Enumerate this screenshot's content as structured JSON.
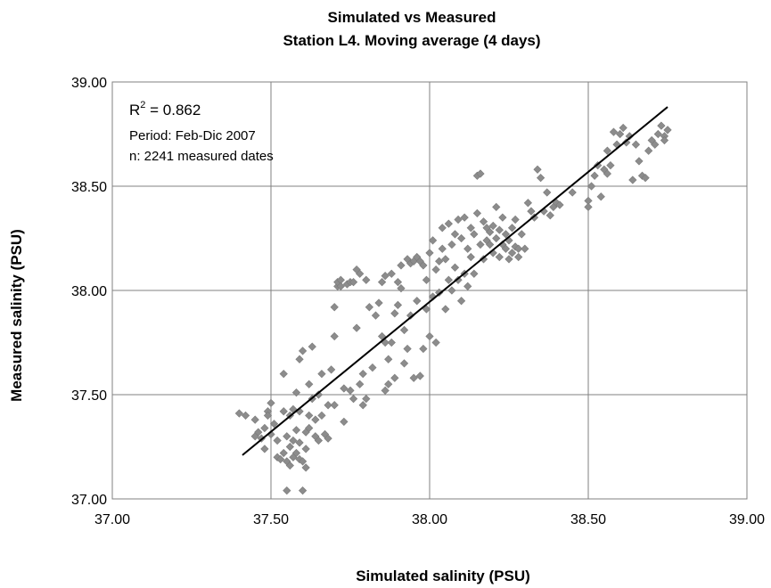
{
  "chart_data": {
    "type": "scatter",
    "title": "Simulated vs Measured",
    "subtitle": "Station L4. Moving average  (4 days)",
    "xlabel": "Simulated salinity (PSU)",
    "ylabel": "Measured salinity (PSU)",
    "xlim": [
      37.0,
      39.0
    ],
    "ylim": [
      37.0,
      39.0
    ],
    "x_ticks": [
      "37.00",
      "37.50",
      "38.00",
      "38.50",
      "39.00"
    ],
    "y_ticks": [
      "37.00",
      "37.50",
      "38.00",
      "38.50",
      "39.00"
    ],
    "grid": true,
    "annotations": {
      "r2_label": "R",
      "r2_sup": "2",
      "r2_value": " = 0.862",
      "period": "Period: Feb-Dic 2007",
      "n": "n: 2241 measured dates"
    },
    "colors": {
      "points": "#8c8c8c",
      "trendline": "#000000",
      "grid": "#808080"
    },
    "trendline": {
      "x": [
        37.41,
        38.75
      ],
      "y": [
        37.21,
        38.88
      ]
    },
    "points": [
      [
        37.4,
        37.41
      ],
      [
        37.42,
        37.4
      ],
      [
        37.45,
        37.38
      ],
      [
        37.45,
        37.3
      ],
      [
        37.46,
        37.32
      ],
      [
        37.47,
        37.29
      ],
      [
        37.48,
        37.34
      ],
      [
        37.48,
        37.24
      ],
      [
        37.49,
        37.42
      ],
      [
        37.49,
        37.4
      ],
      [
        37.5,
        37.46
      ],
      [
        37.5,
        37.31
      ],
      [
        37.51,
        37.36
      ],
      [
        37.52,
        37.28
      ],
      [
        37.52,
        37.2
      ],
      [
        37.53,
        37.19
      ],
      [
        37.54,
        37.22
      ],
      [
        37.54,
        37.42
      ],
      [
        37.54,
        37.6
      ],
      [
        37.55,
        37.04
      ],
      [
        37.55,
        37.18
      ],
      [
        37.55,
        37.3
      ],
      [
        37.56,
        37.16
      ],
      [
        37.56,
        37.25
      ],
      [
        37.56,
        37.4
      ],
      [
        37.57,
        37.28
      ],
      [
        37.57,
        37.43
      ],
      [
        37.57,
        37.2
      ],
      [
        37.58,
        37.33
      ],
      [
        37.58,
        37.22
      ],
      [
        37.58,
        37.51
      ],
      [
        37.59,
        37.19
      ],
      [
        37.59,
        37.27
      ],
      [
        37.59,
        37.42
      ],
      [
        37.59,
        37.67
      ],
      [
        37.6,
        37.04
      ],
      [
        37.6,
        37.18
      ],
      [
        37.6,
        37.71
      ],
      [
        37.61,
        37.32
      ],
      [
        37.61,
        37.15
      ],
      [
        37.61,
        37.24
      ],
      [
        37.62,
        37.34
      ],
      [
        37.62,
        37.4
      ],
      [
        37.62,
        37.55
      ],
      [
        37.63,
        37.48
      ],
      [
        37.63,
        37.73
      ],
      [
        37.64,
        37.3
      ],
      [
        37.64,
        37.38
      ],
      [
        37.65,
        37.28
      ],
      [
        37.65,
        37.5
      ],
      [
        37.66,
        37.4
      ],
      [
        37.66,
        37.6
      ],
      [
        37.67,
        37.31
      ],
      [
        37.68,
        37.45
      ],
      [
        37.68,
        37.29
      ],
      [
        37.69,
        37.62
      ],
      [
        37.7,
        37.45
      ],
      [
        37.7,
        37.78
      ],
      [
        37.7,
        37.92
      ],
      [
        37.71,
        38.02
      ],
      [
        37.71,
        38.04
      ],
      [
        37.72,
        38.05
      ],
      [
        37.72,
        38.02
      ],
      [
        37.73,
        37.53
      ],
      [
        37.73,
        37.37
      ],
      [
        37.74,
        38.03
      ],
      [
        37.75,
        38.04
      ],
      [
        37.75,
        37.52
      ],
      [
        37.76,
        38.04
      ],
      [
        37.76,
        37.48
      ],
      [
        37.77,
        37.82
      ],
      [
        37.77,
        38.1
      ],
      [
        37.78,
        38.08
      ],
      [
        37.78,
        37.55
      ],
      [
        37.79,
        37.45
      ],
      [
        37.79,
        37.6
      ],
      [
        37.8,
        38.05
      ],
      [
        37.8,
        37.48
      ],
      [
        37.81,
        37.92
      ],
      [
        37.82,
        37.63
      ],
      [
        37.83,
        37.88
      ],
      [
        37.84,
        37.94
      ],
      [
        37.85,
        38.04
      ],
      [
        37.85,
        37.78
      ],
      [
        37.86,
        38.07
      ],
      [
        37.86,
        37.75
      ],
      [
        37.86,
        37.52
      ],
      [
        37.87,
        37.67
      ],
      [
        37.87,
        37.55
      ],
      [
        37.88,
        38.08
      ],
      [
        37.88,
        37.75
      ],
      [
        37.89,
        37.58
      ],
      [
        37.89,
        37.89
      ],
      [
        37.9,
        37.93
      ],
      [
        37.9,
        38.04
      ],
      [
        37.91,
        38.12
      ],
      [
        37.91,
        38.01
      ],
      [
        37.92,
        37.81
      ],
      [
        37.92,
        37.65
      ],
      [
        37.93,
        38.15
      ],
      [
        37.93,
        37.72
      ],
      [
        37.94,
        38.13
      ],
      [
        37.94,
        37.88
      ],
      [
        37.95,
        38.14
      ],
      [
        37.95,
        37.58
      ],
      [
        37.96,
        38.16
      ],
      [
        37.96,
        37.95
      ],
      [
        37.97,
        38.14
      ],
      [
        37.97,
        37.59
      ],
      [
        37.98,
        38.12
      ],
      [
        37.98,
        37.72
      ],
      [
        37.99,
        38.05
      ],
      [
        37.99,
        37.91
      ],
      [
        38.0,
        38.18
      ],
      [
        38.0,
        37.78
      ],
      [
        38.01,
        38.24
      ],
      [
        38.01,
        37.97
      ],
      [
        38.02,
        38.1
      ],
      [
        38.02,
        37.75
      ],
      [
        38.03,
        38.14
      ],
      [
        38.03,
        37.99
      ],
      [
        38.04,
        38.3
      ],
      [
        38.04,
        38.2
      ],
      [
        38.05,
        38.15
      ],
      [
        38.05,
        37.91
      ],
      [
        38.06,
        38.32
      ],
      [
        38.06,
        38.05
      ],
      [
        38.07,
        38.22
      ],
      [
        38.07,
        38.0
      ],
      [
        38.08,
        38.27
      ],
      [
        38.08,
        38.11
      ],
      [
        38.09,
        38.34
      ],
      [
        38.09,
        38.05
      ],
      [
        38.1,
        38.25
      ],
      [
        38.1,
        37.95
      ],
      [
        38.11,
        38.35
      ],
      [
        38.11,
        38.08
      ],
      [
        38.12,
        38.2
      ],
      [
        38.12,
        38.02
      ],
      [
        38.13,
        38.3
      ],
      [
        38.13,
        38.16
      ],
      [
        38.14,
        38.27
      ],
      [
        38.14,
        38.08
      ],
      [
        38.15,
        38.55
      ],
      [
        38.15,
        38.37
      ],
      [
        38.16,
        38.56
      ],
      [
        38.16,
        38.22
      ],
      [
        38.17,
        38.33
      ],
      [
        38.17,
        38.15
      ],
      [
        38.18,
        38.3
      ],
      [
        38.18,
        38.24
      ],
      [
        38.19,
        38.22
      ],
      [
        38.19,
        38.28
      ],
      [
        38.2,
        38.31
      ],
      [
        38.2,
        38.18
      ],
      [
        38.21,
        38.4
      ],
      [
        38.21,
        38.25
      ],
      [
        38.22,
        38.16
      ],
      [
        38.22,
        38.29
      ],
      [
        38.23,
        38.22
      ],
      [
        38.23,
        38.35
      ],
      [
        38.24,
        38.2
      ],
      [
        38.24,
        38.27
      ],
      [
        38.25,
        38.24
      ],
      [
        38.25,
        38.15
      ],
      [
        38.26,
        38.3
      ],
      [
        38.26,
        38.18
      ],
      [
        38.27,
        38.21
      ],
      [
        38.27,
        38.34
      ],
      [
        38.28,
        38.2
      ],
      [
        38.28,
        38.16
      ],
      [
        38.29,
        38.27
      ],
      [
        38.3,
        38.2
      ],
      [
        38.31,
        38.42
      ],
      [
        38.32,
        38.38
      ],
      [
        38.33,
        38.35
      ],
      [
        38.34,
        38.58
      ],
      [
        38.35,
        38.54
      ],
      [
        38.36,
        38.38
      ],
      [
        38.37,
        38.47
      ],
      [
        38.38,
        38.36
      ],
      [
        38.39,
        38.4
      ],
      [
        38.4,
        38.42
      ],
      [
        38.41,
        38.41
      ],
      [
        38.45,
        38.47
      ],
      [
        38.5,
        38.43
      ],
      [
        38.5,
        38.4
      ],
      [
        38.51,
        38.5
      ],
      [
        38.52,
        38.55
      ],
      [
        38.53,
        38.6
      ],
      [
        38.54,
        38.45
      ],
      [
        38.55,
        38.58
      ],
      [
        38.56,
        38.56
      ],
      [
        38.56,
        38.67
      ],
      [
        38.57,
        38.6
      ],
      [
        38.58,
        38.76
      ],
      [
        38.59,
        38.7
      ],
      [
        38.6,
        38.75
      ],
      [
        38.61,
        38.78
      ],
      [
        38.62,
        38.71
      ],
      [
        38.63,
        38.74
      ],
      [
        38.64,
        38.53
      ],
      [
        38.65,
        38.7
      ],
      [
        38.66,
        38.62
      ],
      [
        38.67,
        38.55
      ],
      [
        38.68,
        38.54
      ],
      [
        38.69,
        38.67
      ],
      [
        38.7,
        38.72
      ],
      [
        38.71,
        38.7
      ],
      [
        38.72,
        38.75
      ],
      [
        38.73,
        38.79
      ],
      [
        38.74,
        38.74
      ],
      [
        38.75,
        38.77
      ],
      [
        38.74,
        38.72
      ]
    ]
  }
}
